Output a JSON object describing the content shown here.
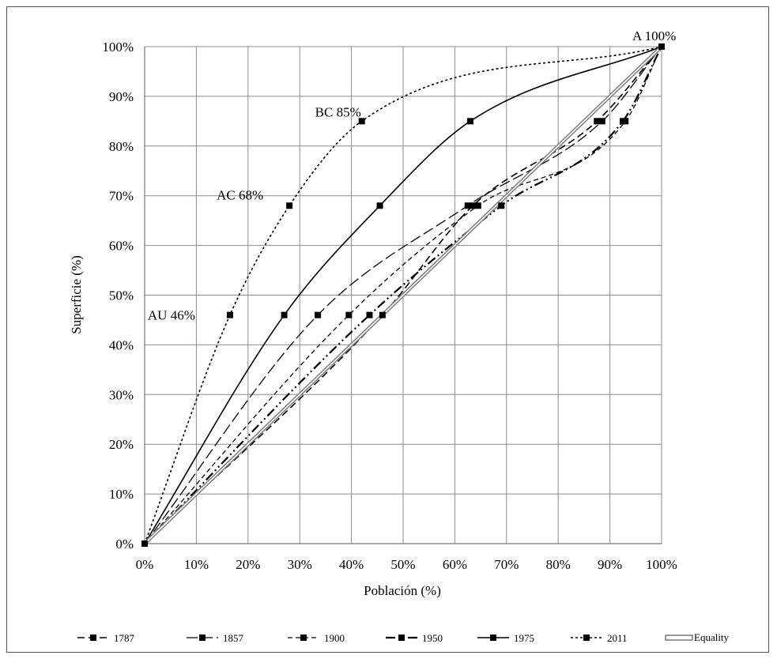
{
  "chart_data": {
    "type": "line",
    "title": "",
    "xlabel": "Población (%)",
    "ylabel": "Superficie (%)",
    "xlim": [
      0,
      100
    ],
    "ylim": [
      0,
      100
    ],
    "x_ticks": [
      "0%",
      "10%",
      "20%",
      "30%",
      "40%",
      "50%",
      "60%",
      "70%",
      "80%",
      "90%",
      "100%"
    ],
    "y_ticks": [
      "0%",
      "10%",
      "20%",
      "30%",
      "40%",
      "50%",
      "60%",
      "70%",
      "80%",
      "90%",
      "100%"
    ],
    "grid": true,
    "legend_position": "bottom",
    "series": [
      {
        "name": "1787",
        "dash": "dashed-marker",
        "points": [
          [
            0,
            0
          ],
          [
            46,
            46
          ],
          [
            63.5,
            68
          ],
          [
            87.5,
            85
          ],
          [
            100,
            100
          ]
        ]
      },
      {
        "name": "1857",
        "dash": "longdash-dot",
        "points": [
          [
            0,
            0
          ],
          [
            33.5,
            46
          ],
          [
            62.5,
            68
          ],
          [
            88.5,
            85
          ],
          [
            100,
            100
          ]
        ]
      },
      {
        "name": "1900",
        "dash": "shortdash",
        "points": [
          [
            0,
            0
          ],
          [
            39.5,
            46
          ],
          [
            64.5,
            68
          ],
          [
            93,
            85
          ],
          [
            100,
            100
          ]
        ]
      },
      {
        "name": "1950",
        "dash": "dash-dot-dot",
        "points": [
          [
            0,
            0
          ],
          [
            43.5,
            46
          ],
          [
            69,
            68
          ],
          [
            92.5,
            85
          ],
          [
            100,
            100
          ]
        ]
      },
      {
        "name": "1975",
        "dash": "solid",
        "points": [
          [
            0,
            0
          ],
          [
            27,
            46
          ],
          [
            45.5,
            68
          ],
          [
            63,
            85
          ],
          [
            100,
            100
          ]
        ]
      },
      {
        "name": "2011",
        "dash": "dotted",
        "points": [
          [
            0,
            0
          ],
          [
            16.5,
            46
          ],
          [
            28,
            68
          ],
          [
            42,
            85
          ],
          [
            100,
            100
          ]
        ]
      },
      {
        "name": "Equality",
        "dash": "double",
        "points": [
          [
            0,
            0
          ],
          [
            100,
            100
          ]
        ]
      }
    ],
    "annotations": [
      {
        "text": "A   100%",
        "x": 100,
        "y": 100
      },
      {
        "text": "BC 85%",
        "x": 42,
        "y": 85
      },
      {
        "text": "AC 68%",
        "x": 28,
        "y": 68
      },
      {
        "text": "AU 46%",
        "x": 16.5,
        "y": 46
      }
    ]
  }
}
